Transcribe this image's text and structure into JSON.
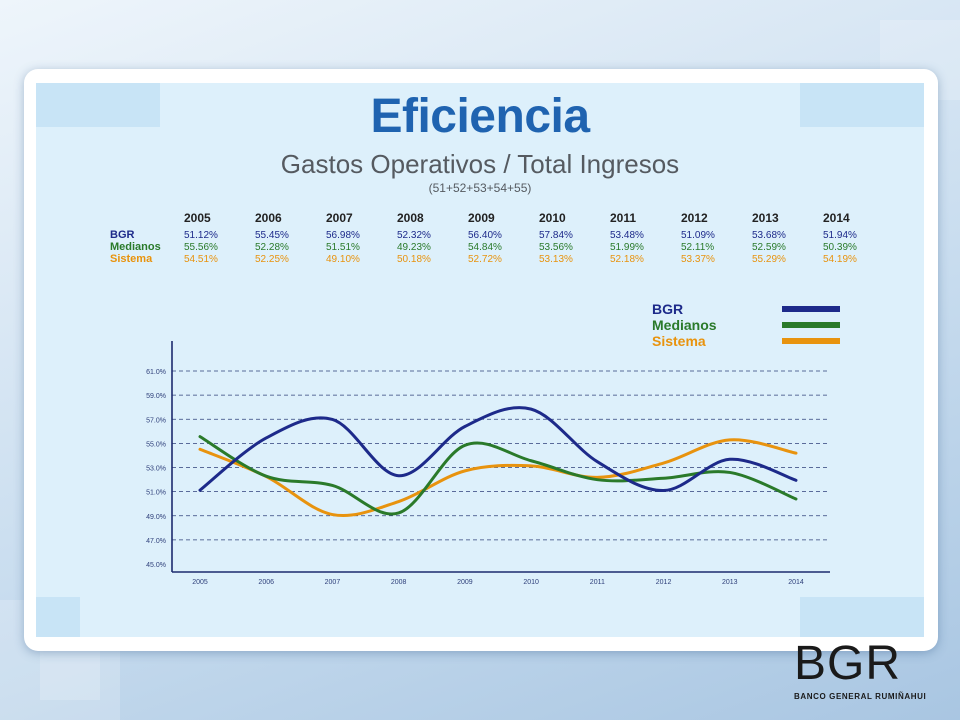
{
  "slide": {
    "title": "Eficiencia",
    "subtitle": "Gastos Operativos / Total Ingresos",
    "formula": "(51+52+53+54+55)"
  },
  "table": {
    "years": [
      "2005",
      "2006",
      "2007",
      "2008",
      "2009",
      "2010",
      "2011",
      "2012",
      "2013",
      "2014"
    ],
    "rows": [
      {
        "name": "BGR",
        "values": [
          "51.12%",
          "55.45%",
          "56.98%",
          "52.32%",
          "56.40%",
          "57.84%",
          "53.48%",
          "51.09%",
          "53.68%",
          "51.94%"
        ]
      },
      {
        "name": "Medianos",
        "values": [
          "55.56%",
          "52.28%",
          "51.51%",
          "49.23%",
          "54.84%",
          "53.56%",
          "51.99%",
          "52.11%",
          "52.59%",
          "50.39%"
        ]
      },
      {
        "name": "Sistema",
        "values": [
          "54.51%",
          "52.25%",
          "49.10%",
          "50.18%",
          "52.72%",
          "53.13%",
          "52.18%",
          "53.37%",
          "55.29%",
          "54.19%"
        ]
      }
    ]
  },
  "chart_data": {
    "type": "line",
    "x": [
      "2005",
      "2006",
      "2007",
      "2008",
      "2009",
      "2010",
      "2011",
      "2012",
      "2013",
      "2014"
    ],
    "ylim": [
      45,
      61
    ],
    "yticks": [
      "45.0%",
      "47.0%",
      "49.0%",
      "51.0%",
      "53.0%",
      "55.0%",
      "57.0%",
      "59.0%",
      "61.0%"
    ],
    "ytick_values": [
      45,
      47,
      49,
      51,
      53,
      55,
      57,
      59,
      61
    ],
    "grid": "horizontal dashed",
    "legend_position": "top-right",
    "series": [
      {
        "name": "BGR",
        "color": "#1d2a8a",
        "values": [
          51.12,
          55.45,
          56.98,
          52.32,
          56.4,
          57.84,
          53.48,
          51.09,
          53.68,
          51.94
        ]
      },
      {
        "name": "Medianos",
        "color": "#2a7a2a",
        "values": [
          55.56,
          52.28,
          51.51,
          49.23,
          54.84,
          53.56,
          51.99,
          52.11,
          52.59,
          50.39
        ]
      },
      {
        "name": "Sistema",
        "color": "#e8930e",
        "values": [
          54.51,
          52.25,
          49.1,
          50.18,
          52.72,
          53.13,
          52.18,
          53.37,
          55.29,
          54.19
        ]
      }
    ]
  },
  "logo": {
    "mark": "BGR",
    "name": "BANCO GENERAL RUMIÑAHUI"
  }
}
